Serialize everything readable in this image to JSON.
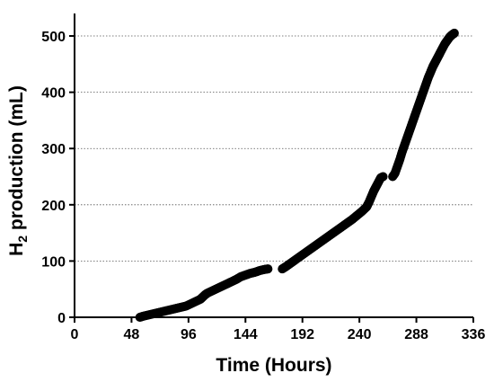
{
  "chart_data": {
    "type": "scatter",
    "title": "",
    "xlabel": "Time (Hours)",
    "ylabel": {
      "prefix": "H",
      "subscript": "2",
      "suffix": " production (mL)"
    },
    "xlim": [
      0,
      336
    ],
    "ylim": [
      0,
      540
    ],
    "xticks": [
      0,
      48,
      96,
      144,
      192,
      240,
      288,
      336
    ],
    "yticks": [
      0,
      100,
      200,
      300,
      400,
      500
    ],
    "grid": {
      "horizontal": true,
      "style": "dotted"
    },
    "marker_color": "#000000",
    "series": [
      {
        "points": [
          [
            55,
            0
          ],
          [
            58,
            2
          ],
          [
            62,
            4
          ],
          [
            66,
            6
          ],
          [
            70,
            8
          ],
          [
            74,
            10
          ],
          [
            78,
            12
          ],
          [
            82,
            14
          ],
          [
            86,
            16
          ],
          [
            90,
            18
          ],
          [
            94,
            20
          ],
          [
            98,
            24
          ],
          [
            102,
            28
          ],
          [
            106,
            32
          ],
          [
            108,
            36
          ],
          [
            110,
            40
          ],
          [
            112,
            43
          ],
          [
            116,
            47
          ],
          [
            120,
            51
          ],
          [
            124,
            55
          ],
          [
            128,
            59
          ],
          [
            132,
            63
          ],
          [
            136,
            67
          ],
          [
            140,
            72
          ],
          [
            144,
            75
          ],
          [
            148,
            78
          ],
          [
            152,
            80
          ],
          [
            156,
            83
          ],
          [
            160,
            85
          ],
          [
            163,
            86
          ],
          [
            175,
            86
          ],
          [
            178,
            90
          ],
          [
            182,
            96
          ],
          [
            186,
            102
          ],
          [
            190,
            108
          ],
          [
            194,
            114
          ],
          [
            198,
            120
          ],
          [
            202,
            126
          ],
          [
            206,
            132
          ],
          [
            210,
            138
          ],
          [
            214,
            144
          ],
          [
            218,
            150
          ],
          [
            222,
            156
          ],
          [
            226,
            162
          ],
          [
            230,
            168
          ],
          [
            234,
            174
          ],
          [
            238,
            181
          ],
          [
            242,
            188
          ],
          [
            246,
            196
          ],
          [
            248,
            204
          ],
          [
            250,
            214
          ],
          [
            252,
            224
          ],
          [
            254,
            232
          ],
          [
            256,
            240
          ],
          [
            258,
            248
          ],
          [
            260,
            250
          ],
          [
            268,
            250
          ],
          [
            270,
            256
          ],
          [
            272,
            268
          ],
          [
            274,
            280
          ],
          [
            276,
            294
          ],
          [
            278,
            306
          ],
          [
            280,
            318
          ],
          [
            282,
            330
          ],
          [
            284,
            342
          ],
          [
            286,
            354
          ],
          [
            288,
            366
          ],
          [
            290,
            378
          ],
          [
            292,
            390
          ],
          [
            294,
            402
          ],
          [
            296,
            414
          ],
          [
            298,
            426
          ],
          [
            300,
            436
          ],
          [
            302,
            446
          ],
          [
            304,
            454
          ],
          [
            306,
            462
          ],
          [
            308,
            470
          ],
          [
            310,
            478
          ],
          [
            312,
            486
          ],
          [
            314,
            492
          ],
          [
            316,
            498
          ],
          [
            318,
            502
          ],
          [
            320,
            505
          ]
        ]
      }
    ]
  }
}
